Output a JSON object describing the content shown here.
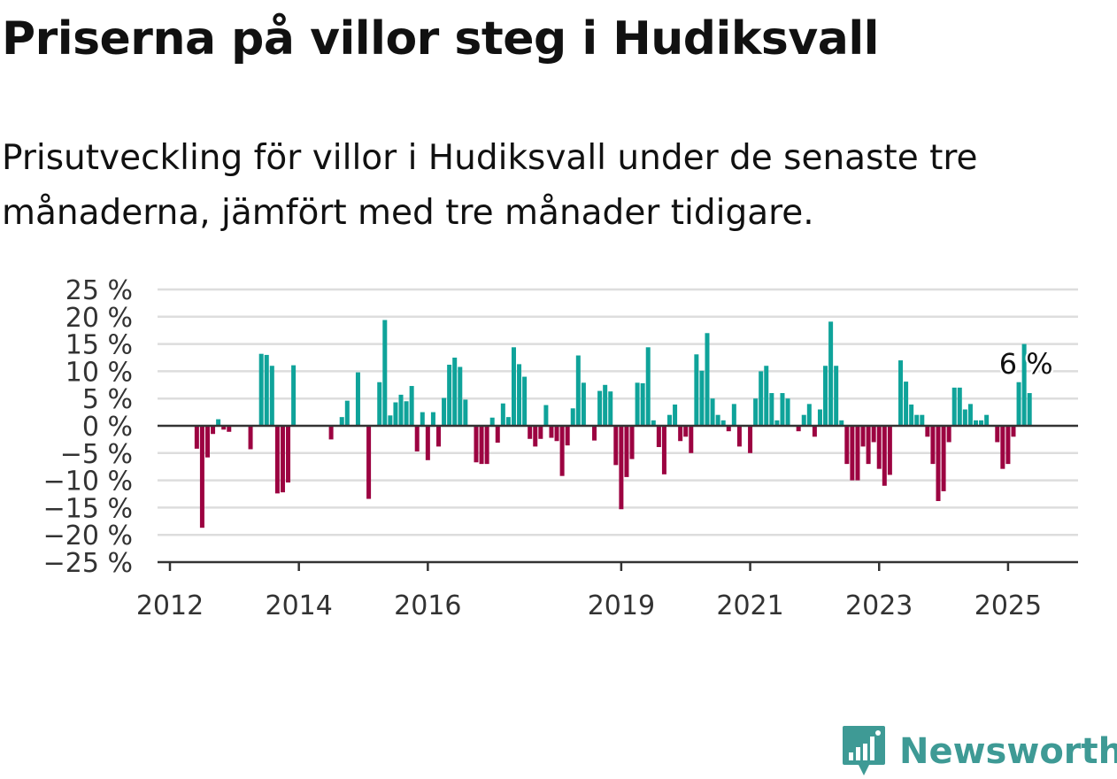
{
  "title": "Priserna på villor steg i Hudiksvall",
  "subtitle": "Prisutveckling för villor i Hudiksvall under de senaste tre månaderna, jämfört med tre månader tidigare.",
  "brand": "Newsworthy",
  "colors": {
    "positive": "#0fa39a",
    "negative": "#9c0341",
    "grid": "#dddddd",
    "axis": "#333333",
    "brand": "#3e9a95"
  },
  "chart_data": {
    "type": "bar",
    "title": "Priserna på villor steg i Hudiksvall",
    "subtitle": "Prisutveckling för villor i Hudiksvall under de senaste tre månaderna, jämfört med tre månader tidigare.",
    "xlabel": "",
    "ylabel": "",
    "ylim": [
      -25,
      25
    ],
    "yticks": [
      25,
      20,
      15,
      10,
      5,
      0,
      -5,
      -10,
      -15,
      -20,
      -25
    ],
    "ytick_labels": [
      "25 %",
      "20 %",
      "15 %",
      "10 %",
      "5 %",
      "0 %",
      "−5 %",
      "−10 %",
      "−15 %",
      "−20 %",
      "−25 %"
    ],
    "xticks": [
      "2012",
      "2014",
      "2016",
      "2019",
      "2021",
      "2023",
      "2025"
    ],
    "grid": true,
    "x_start": "2012-01",
    "x_end": "2025-05",
    "annotation": {
      "label": "6 %",
      "x": "2025-05",
      "value": 6
    },
    "months": [
      "2012-01",
      "2012-02",
      "2012-03",
      "2012-04",
      "2012-05",
      "2012-06",
      "2012-07",
      "2012-08",
      "2012-09",
      "2012-10",
      "2012-11",
      "2012-12",
      "2013-01",
      "2013-02",
      "2013-03",
      "2013-04",
      "2013-05",
      "2013-06",
      "2013-07",
      "2013-08",
      "2013-09",
      "2013-10",
      "2013-11",
      "2013-12",
      "2014-01",
      "2014-02",
      "2014-03",
      "2014-04",
      "2014-05",
      "2014-06",
      "2014-07",
      "2014-08",
      "2014-09",
      "2014-10",
      "2014-11",
      "2014-12",
      "2015-01",
      "2015-02",
      "2015-03",
      "2015-04",
      "2015-05",
      "2015-06",
      "2015-07",
      "2015-08",
      "2015-09",
      "2015-10",
      "2015-11",
      "2015-12",
      "2016-01",
      "2016-02",
      "2016-03",
      "2016-04",
      "2016-05",
      "2016-06",
      "2016-07",
      "2016-08",
      "2016-09",
      "2016-10",
      "2016-11",
      "2016-12",
      "2017-01",
      "2017-02",
      "2017-03",
      "2017-04",
      "2017-05",
      "2017-06",
      "2017-07",
      "2017-08",
      "2017-09",
      "2017-10",
      "2017-11",
      "2017-12",
      "2018-01",
      "2018-02",
      "2018-03",
      "2018-04",
      "2018-05",
      "2018-06",
      "2018-07",
      "2018-08",
      "2018-09",
      "2018-10",
      "2018-11",
      "2018-12",
      "2019-01",
      "2019-02",
      "2019-03",
      "2019-04",
      "2019-05",
      "2019-06",
      "2019-07",
      "2019-08",
      "2019-09",
      "2019-10",
      "2019-11",
      "2019-12",
      "2020-01",
      "2020-02",
      "2020-03",
      "2020-04",
      "2020-05",
      "2020-06",
      "2020-07",
      "2020-08",
      "2020-09",
      "2020-10",
      "2020-11",
      "2020-12",
      "2021-01",
      "2021-02",
      "2021-03",
      "2021-04",
      "2021-05",
      "2021-06",
      "2021-07",
      "2021-08",
      "2021-09",
      "2021-10",
      "2021-11",
      "2021-12",
      "2022-01",
      "2022-02",
      "2022-03",
      "2022-04",
      "2022-05",
      "2022-06",
      "2022-07",
      "2022-08",
      "2022-09",
      "2022-10",
      "2022-11",
      "2022-12",
      "2023-01",
      "2023-02",
      "2023-03",
      "2023-04",
      "2023-05",
      "2023-06",
      "2023-07",
      "2023-08",
      "2023-09",
      "2023-10",
      "2023-11",
      "2023-12",
      "2024-01",
      "2024-02",
      "2024-03",
      "2024-04",
      "2024-05",
      "2024-06",
      "2024-07",
      "2024-08",
      "2024-09",
      "2024-10",
      "2024-11",
      "2024-12",
      "2025-01",
      "2025-02",
      "2025-03",
      "2025-04",
      "2025-05"
    ],
    "values": [
      null,
      null,
      null,
      null,
      null,
      -4.2,
      -18.7,
      -5.8,
      -1.5,
      1.2,
      -0.7,
      -1.1,
      null,
      null,
      null,
      -4.3,
      null,
      13.2,
      13.0,
      11.0,
      -12.4,
      -12.2,
      -10.4,
      11.1,
      null,
      null,
      null,
      null,
      null,
      null,
      -2.5,
      null,
      1.6,
      4.6,
      null,
      9.8,
      null,
      -13.4,
      null,
      8.0,
      19.4,
      1.9,
      4.3,
      5.7,
      4.5,
      7.3,
      -4.7,
      2.5,
      -6.3,
      2.5,
      -3.8,
      5.1,
      11.2,
      12.5,
      10.8,
      4.8,
      null,
      -6.7,
      -7.0,
      -7.0,
      1.5,
      -3.1,
      4.1,
      1.6,
      14.4,
      11.3,
      9.0,
      -2.4,
      -3.8,
      -2.4,
      3.8,
      -2.2,
      -2.8,
      -9.2,
      -3.6,
      3.2,
      12.9,
      7.9,
      null,
      -2.7,
      6.4,
      7.5,
      6.3,
      -7.2,
      -15.3,
      -9.4,
      -6.1,
      7.9,
      7.8,
      14.4,
      1.0,
      -3.9,
      -8.9,
      2.0,
      3.9,
      -2.8,
      -2.0,
      -5.0,
      13.1,
      10.1,
      17.0,
      5.0,
      2.0,
      1.0,
      -1.0,
      4.0,
      -3.8,
      null,
      -5.0,
      5.0,
      10.0,
      11.0,
      6.0,
      1.0,
      6.0,
      5.0,
      null,
      -1.0,
      2.0,
      4.0,
      -2.0,
      3.0,
      11.0,
      19.1,
      11.0,
      1.0,
      -7.0,
      -10.0,
      -10.0,
      -3.8,
      -7.0,
      -3.0,
      -7.9,
      -11.0,
      -9.0,
      null,
      12.0,
      8.1,
      3.9,
      2.0,
      2.0,
      -2.0,
      -7.0,
      -13.8,
      -12.0,
      -3.0,
      7.0,
      7.0,
      3.0,
      4.0,
      1.0,
      1.0,
      2.0,
      null,
      -3.0,
      -7.9,
      -7.0,
      -2.0,
      8.0,
      15.0,
      6.0
    ]
  }
}
